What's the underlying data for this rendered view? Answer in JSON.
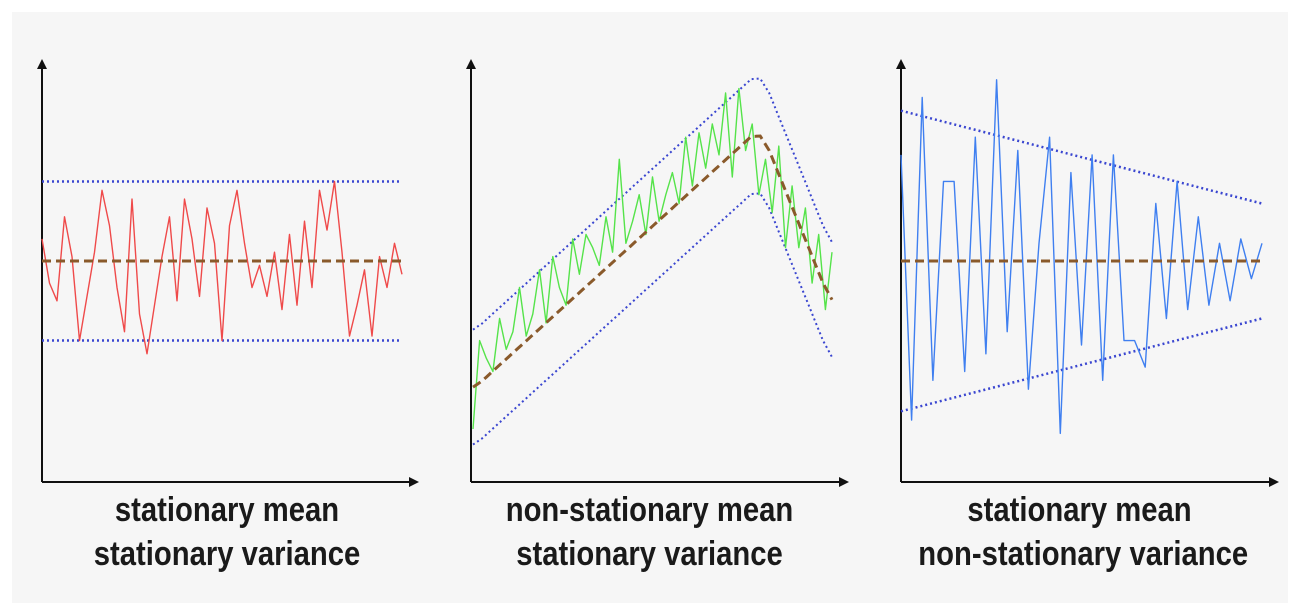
{
  "colors": {
    "background": "#f6f6f6",
    "axis": "#111111",
    "mean": "#8a5a2b",
    "bounds": "#3a46d0",
    "series_1": "#ef4a4a",
    "series_2": "#55e34a",
    "series_3": "#3f7ff0"
  },
  "chart_data": [
    {
      "type": "line",
      "title": "",
      "caption": [
        "stationary mean",
        "stationary variance"
      ],
      "xlabel": "",
      "ylabel": "",
      "xlim": [
        0,
        40
      ],
      "ylim": [
        -5,
        5
      ],
      "grid": false,
      "mean": {
        "y0": 0,
        "y1": 0,
        "style": "dashed"
      },
      "bounds": {
        "upper": [
          1.8,
          1.8
        ],
        "lower": [
          -1.8,
          -1.8
        ],
        "style": "dotted"
      },
      "series": [
        {
          "values": [
            0.5,
            -0.5,
            -0.9,
            1.0,
            0.1,
            -1.8,
            -0.8,
            0.2,
            1.6,
            0.8,
            -0.6,
            -1.6,
            1.4,
            -1.2,
            -2.1,
            -1.0,
            0.1,
            1.0,
            -0.9,
            1.4,
            0.5,
            -0.8,
            1.2,
            0.4,
            -1.8,
            0.8,
            1.6,
            0.4,
            -0.6,
            -0.1,
            -0.8,
            0.2,
            -1.1,
            0.6,
            -1.0,
            0.9,
            -0.6,
            1.6,
            0.7,
            1.8,
            0.2,
            -1.7,
            -1.0,
            -0.2,
            -1.7,
            0.1,
            -0.6,
            0.4,
            -0.3
          ]
        }
      ]
    },
    {
      "type": "line",
      "title": "",
      "caption": [
        "non-stationary mean",
        "stationary variance"
      ],
      "xlabel": "",
      "ylabel": "",
      "xlim": [
        0,
        40
      ],
      "ylim": [
        -5,
        5
      ],
      "grid": false,
      "mean": {
        "points": [
          [
            0,
            -2.9
          ],
          [
            32,
            3.0
          ],
          [
            40,
            -1.0
          ]
        ],
        "style": "dashed"
      },
      "bounds": {
        "offset": 1.3,
        "style": "dotted"
      },
      "series": [
        {
          "values": [
            -3.8,
            -1.8,
            -2.2,
            -2.5,
            -1.3,
            -2.0,
            -1.6,
            -0.6,
            -1.7,
            -1.2,
            -0.2,
            -1.4,
            0.1,
            -0.6,
            -1.0,
            0.5,
            -0.3,
            0.6,
            0.3,
            -0.1,
            1.0,
            0.2,
            2.3,
            0.4,
            0.9,
            1.5,
            0.6,
            1.9,
            0.9,
            1.5,
            2.0,
            1.3,
            2.8,
            1.7,
            2.9,
            2.1,
            3.1,
            2.4,
            3.8,
            1.9,
            3.9,
            2.5,
            3.1,
            1.5,
            2.3,
            1.1,
            2.6,
            0.3,
            1.7,
            0.3,
            1.2,
            -0.5,
            0.6,
            -1.1,
            0.2
          ]
        }
      ]
    },
    {
      "type": "line",
      "title": "",
      "caption": [
        "stationary mean",
        "non-stationary variance"
      ],
      "xlabel": "",
      "ylabel": "",
      "xlim": [
        0,
        40
      ],
      "ylim": [
        -5,
        5
      ],
      "grid": false,
      "mean": {
        "y0": 0,
        "y1": 0,
        "style": "dashed"
      },
      "bounds": {
        "upper": [
          3.4,
          1.3
        ],
        "lower": [
          -3.4,
          -1.3
        ],
        "style": "dotted"
      },
      "series": [
        {
          "values": [
            2.4,
            -3.6,
            3.7,
            -2.7,
            1.8,
            1.8,
            -2.5,
            2.8,
            -2.1,
            4.1,
            -1.6,
            2.5,
            -2.9,
            0.4,
            2.8,
            -3.9,
            2.0,
            -1.9,
            2.4,
            -2.7,
            2.4,
            -1.8,
            -1.8,
            -2.4,
            1.3,
            -1.3,
            1.8,
            -1.1,
            1.0,
            -1.0,
            0.4,
            -0.9,
            0.5,
            -0.4,
            0.4
          ]
        }
      ]
    }
  ]
}
